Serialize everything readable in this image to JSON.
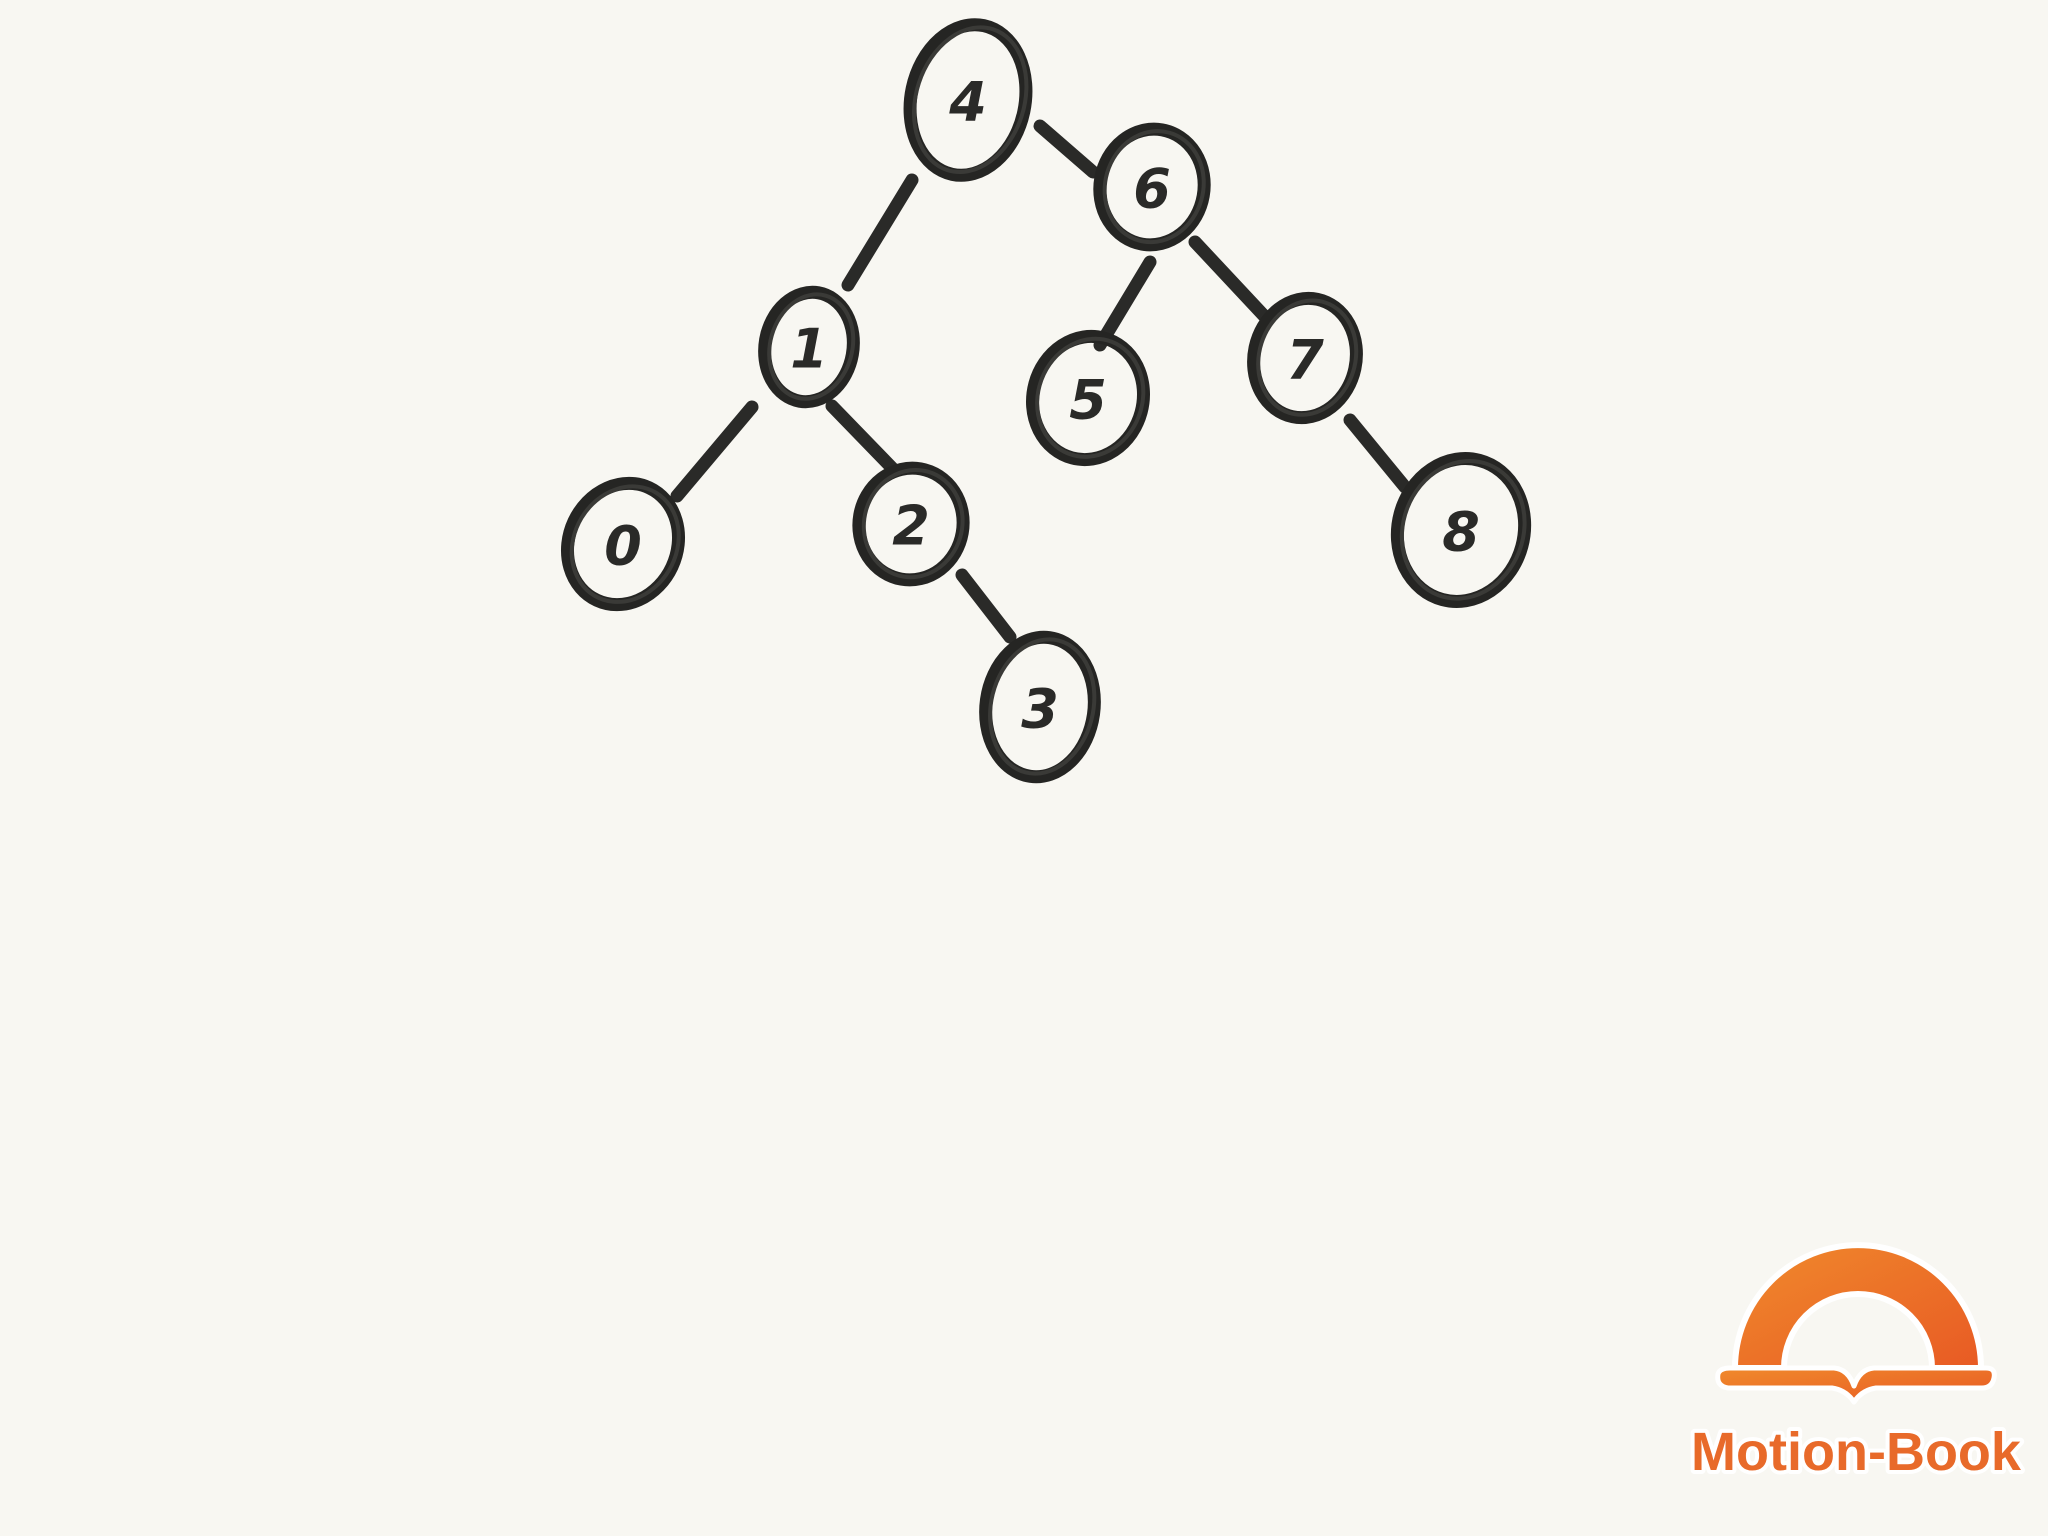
{
  "diagram": {
    "type": "binary-search-tree",
    "nodes": [
      {
        "id": "n4",
        "label": "4"
      },
      {
        "id": "n6",
        "label": "6"
      },
      {
        "id": "n1",
        "label": "1"
      },
      {
        "id": "n5",
        "label": "5"
      },
      {
        "id": "n7",
        "label": "7"
      },
      {
        "id": "n0",
        "label": "0"
      },
      {
        "id": "n2",
        "label": "2"
      },
      {
        "id": "n8",
        "label": "8"
      },
      {
        "id": "n3",
        "label": "3"
      }
    ],
    "edges": [
      {
        "from": "n4",
        "to": "n6"
      },
      {
        "from": "n4",
        "to": "n1"
      },
      {
        "from": "n6",
        "to": "n5"
      },
      {
        "from": "n6",
        "to": "n7"
      },
      {
        "from": "n1",
        "to": "n0"
      },
      {
        "from": "n1",
        "to": "n2"
      },
      {
        "from": "n7",
        "to": "n8"
      },
      {
        "from": "n2",
        "to": "n3"
      }
    ]
  },
  "logo": {
    "text": "Motion-Book",
    "color": "#e86a2a"
  },
  "colors": {
    "background": "#f8f7f2",
    "ink": "#2a2a28",
    "accent": "#e86a2a"
  }
}
